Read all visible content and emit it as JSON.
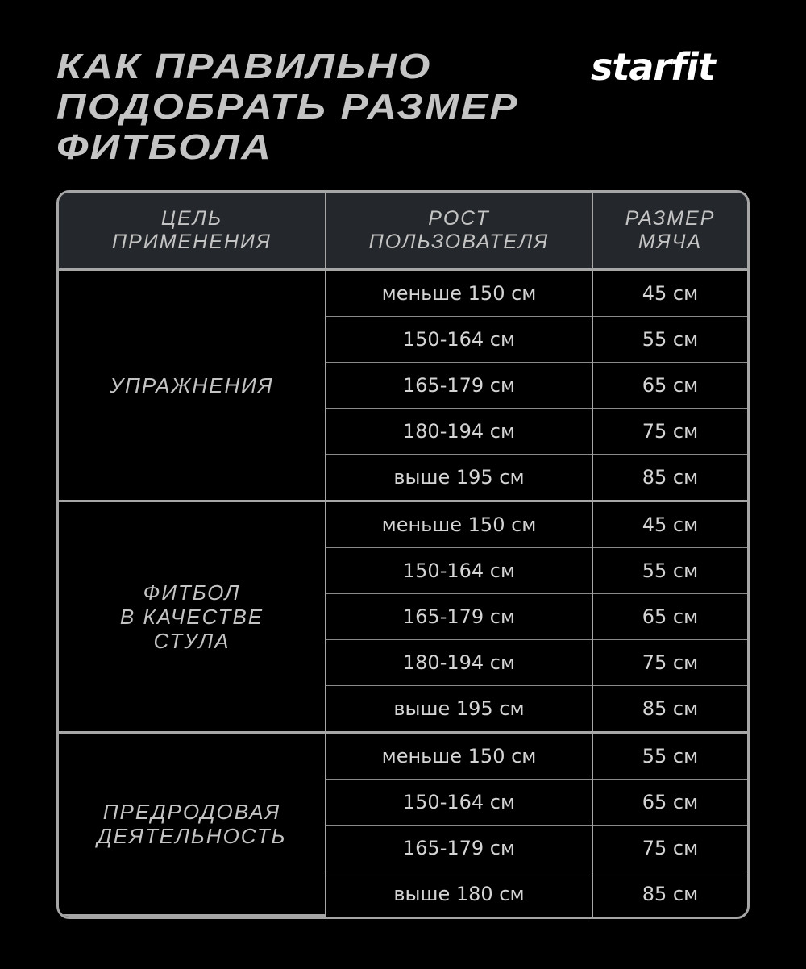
{
  "title": [
    "КАК ПРАВИЛЬНО",
    "ПОДОБРАТЬ РАЗМЕР",
    "ФИТБОЛА"
  ],
  "logo": "starfit",
  "headers": [
    [
      "ЦЕЛЬ",
      "ПРИМЕНЕНИЯ"
    ],
    [
      "РОСТ",
      "ПОЛЬЗОВАТЕЛЯ"
    ],
    [
      "РАЗМЕР",
      "МЯЧА"
    ]
  ],
  "groups": [
    {
      "label": [
        "УПРАЖНЕНИЯ"
      ],
      "rows": [
        [
          "меньше 150 см",
          "45 см"
        ],
        [
          "150-164 см",
          "55 см"
        ],
        [
          "165-179 см",
          "65 см"
        ],
        [
          "180-194 см",
          "75 см"
        ],
        [
          "выше 195 см",
          "85 см"
        ]
      ]
    },
    {
      "label": [
        "ФИТБОЛ",
        "В КАЧЕСТВЕ",
        "СТУЛА"
      ],
      "rows": [
        [
          "меньше 150 см",
          "45 см"
        ],
        [
          "150-164 см",
          "55 см"
        ],
        [
          "165-179 см",
          "65 см"
        ],
        [
          "180-194 см",
          "75 см"
        ],
        [
          "выше 195 см",
          "85 см"
        ]
      ]
    },
    {
      "label": [
        "ПРЕДРОДОВАЯ",
        "ДЕЯТЕЛЬНОСТЬ"
      ],
      "rows": [
        [
          "меньше 150 см",
          "55 см"
        ],
        [
          "150-164 см",
          "65 см"
        ],
        [
          "165-179 см",
          "75 см"
        ],
        [
          "выше 180 см",
          "85 см"
        ]
      ]
    }
  ],
  "colors": {
    "background": "#000000",
    "header_bg": "#24272b",
    "border": "#a6a6a6",
    "text": "#d4d4d4"
  }
}
